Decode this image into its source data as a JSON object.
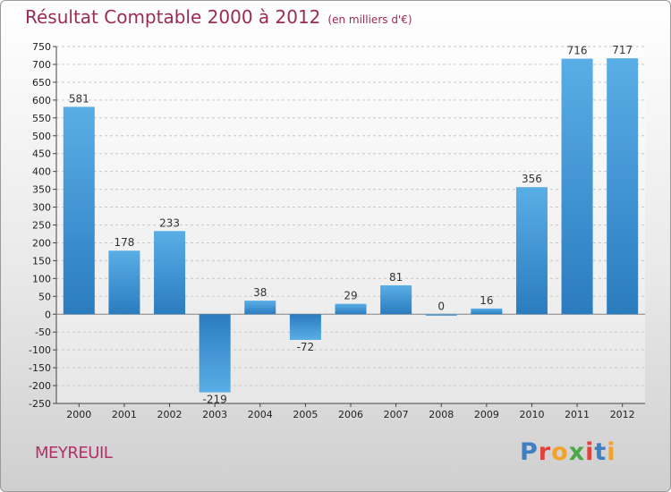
{
  "title": "Résultat Comptable 2000 à 2012",
  "subtitle": "(en milliers d'€)",
  "town": "MEYREUIL",
  "logo": {
    "letters": [
      "P",
      "r",
      "o",
      "x",
      "i",
      "t",
      "i"
    ],
    "colors": [
      "#3d7fc2",
      "#e0433a",
      "#f0a22a",
      "#4aa845",
      "#e0433a",
      "#3d7fc2",
      "#f0a22a"
    ]
  },
  "chart_data": {
    "type": "bar",
    "categories": [
      "2000",
      "2001",
      "2002",
      "2003",
      "2004",
      "2005",
      "2006",
      "2007",
      "2008",
      "2009",
      "2010",
      "2011",
      "2012"
    ],
    "values": [
      581,
      178,
      233,
      -219,
      38,
      -72,
      29,
      81,
      0,
      16,
      356,
      716,
      717
    ],
    "ylim": [
      -250,
      750
    ],
    "yticks": [
      -250,
      -200,
      -150,
      -100,
      -50,
      0,
      50,
      100,
      150,
      200,
      250,
      300,
      350,
      400,
      450,
      500,
      550,
      600,
      650,
      700,
      750
    ],
    "grid": true,
    "bar_color_light": "#5aaee6",
    "bar_color_dark": "#2a7cbf"
  }
}
